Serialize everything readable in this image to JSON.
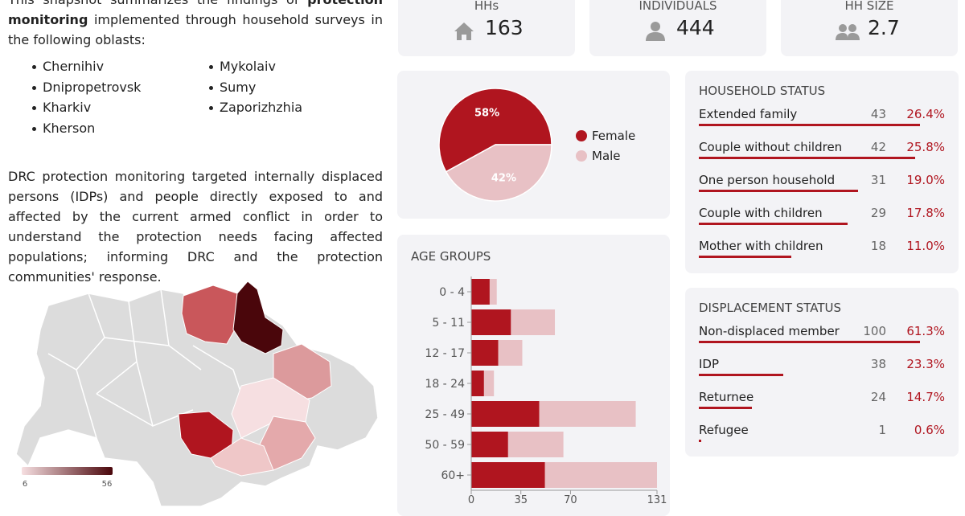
{
  "intro": {
    "before": "This snapshot summarizes the findings of",
    "bold": "protection monitoring",
    "after": "implemented through household surveys in the following oblasts:"
  },
  "oblasts": [
    "Chernihiv",
    "Dnipropetrovsk",
    "Kharkiv",
    "Kherson",
    "Mykolaiv",
    "Sumy",
    "Zaporizhzhia"
  ],
  "description": "DRC protection monitoring targeted internally displaced persons (IDPs) and people directly exposed to and affected by the current armed conflict in order to understand the protection needs facing affected populations; informing DRC and the protection communities' response.",
  "map_legend": {
    "min": 6,
    "max": 56,
    "colors": [
      "#f6dfe1",
      "#4a060b"
    ]
  },
  "kpis": [
    {
      "label": "HHs",
      "value": 163
    },
    {
      "label": "INDIVIDUALS",
      "value": 444
    },
    {
      "label": "HH SIZE",
      "value": 2.7
    }
  ],
  "gender_chart": {
    "type": "pie",
    "categories": [
      "Female",
      "Male"
    ],
    "values": [
      58,
      42
    ],
    "value_labels": [
      "58%",
      "42%"
    ],
    "colors": [
      "#b0151f",
      "#e8c1c5"
    ]
  },
  "age_chart": {
    "type": "bar",
    "title": "AGE GROUPS",
    "orientation": "horizontal",
    "stacked": true,
    "categories": [
      "0 - 4",
      "5 - 11",
      "12 - 17",
      "18 - 24",
      "25 - 49",
      "50 - 59",
      "60+"
    ],
    "series": [
      {
        "color": "#b0151f",
        "values": [
          13,
          28,
          19,
          9,
          48,
          26,
          52
        ]
      },
      {
        "color": "#e8c1c5",
        "values": [
          5,
          31,
          17,
          7,
          68,
          39,
          79
        ]
      }
    ],
    "xlim": [
      0,
      131
    ],
    "xticks": [
      0,
      35,
      70,
      131
    ]
  },
  "household_status": {
    "title": "HOUSEHOLD STATUS",
    "rows": [
      {
        "label": "Extended family",
        "count": 43,
        "percent": 26.4,
        "percent_label": "26.4%"
      },
      {
        "label": "Couple without children",
        "count": 42,
        "percent": 25.8,
        "percent_label": "25.8%"
      },
      {
        "label": "One person household",
        "count": 31,
        "percent": 19.0,
        "percent_label": "19.0%"
      },
      {
        "label": "Couple with children",
        "count": 29,
        "percent": 17.8,
        "percent_label": "17.8%"
      },
      {
        "label": "Mother with children",
        "count": 18,
        "percent": 11.0,
        "percent_label": "11.0%"
      }
    ]
  },
  "displacement_status": {
    "title": "DISPLACEMENT STATUS",
    "rows": [
      {
        "label": "Non-displaced member",
        "count": 100,
        "percent": 61.3,
        "percent_label": "61.3%"
      },
      {
        "label": "IDP",
        "count": 38,
        "percent": 23.3,
        "percent_label": "23.3%"
      },
      {
        "label": "Returnee",
        "count": 24,
        "percent": 14.7,
        "percent_label": "14.7%"
      },
      {
        "label": "Refugee",
        "count": 1,
        "percent": 0.6,
        "percent_label": "0.6%"
      }
    ]
  }
}
